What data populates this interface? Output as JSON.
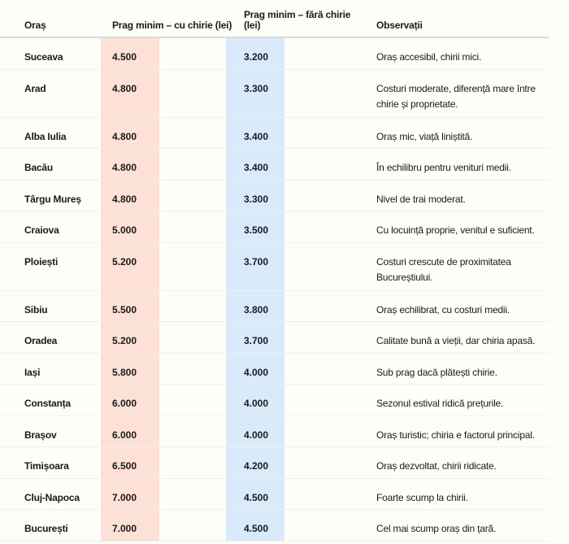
{
  "header": {
    "city": "Oraș",
    "with_rent": "Prag minim – cu chirie (lei)",
    "without_rent": "Prag minim – fără chirie (lei)",
    "notes": "Observații"
  },
  "rows": [
    {
      "city": "Suceava",
      "with_rent": "4.500",
      "without_rent": "3.200",
      "notes": "Oraș accesibil, chirii mici."
    },
    {
      "city": "Arad",
      "with_rent": "4.800",
      "without_rent": "3.300",
      "notes": "Costuri moderate, diferență mare între chirie și proprietate."
    },
    {
      "city": "Alba Iulia",
      "with_rent": "4.800",
      "without_rent": "3.400",
      "notes": "Oraș mic, viață liniștită."
    },
    {
      "city": "Bacău",
      "with_rent": "4.800",
      "without_rent": "3.400",
      "notes": "În echilibru pentru venituri medii."
    },
    {
      "city": "Târgu Mureș",
      "with_rent": "4.800",
      "without_rent": "3.300",
      "notes": "Nivel de trai moderat."
    },
    {
      "city": "Craiova",
      "with_rent": "5.000",
      "without_rent": "3.500",
      "notes": "Cu locuință proprie, venitul e suficient."
    },
    {
      "city": "Ploiești",
      "with_rent": "5.200",
      "without_rent": "3.700",
      "notes": "Costuri crescute de proximitatea Bucureștiului."
    },
    {
      "city": "Sibiu",
      "with_rent": "5.500",
      "without_rent": "3.800",
      "notes": "Oraș echilibrat, cu costuri medii."
    },
    {
      "city": "Oradea",
      "with_rent": "5.200",
      "without_rent": "3.700",
      "notes": "Calitate bună a vieții, dar chiria apasă."
    },
    {
      "city": "Iași",
      "with_rent": "5.800",
      "without_rent": "4.000",
      "notes": "Sub prag dacă plătești chirie."
    },
    {
      "city": "Constanța",
      "with_rent": "6.000",
      "without_rent": "4.000",
      "notes": "Sezonul estival ridică prețurile."
    },
    {
      "city": "Brașov",
      "with_rent": "6.000",
      "without_rent": "4.000",
      "notes": "Oraș turistic; chiria e factorul principal."
    },
    {
      "city": "Timișoara",
      "with_rent": "6.500",
      "without_rent": "4.200",
      "notes": "Oraș dezvoltat, chirii ridicate."
    },
    {
      "city": "Cluj-Napoca",
      "with_rent": "7.000",
      "without_rent": "4.500",
      "notes": "Foarte scump la chirii."
    },
    {
      "city": "București",
      "with_rent": "7.000",
      "without_rent": "4.500",
      "notes": "Cel mai scump oraș din țară."
    }
  ],
  "colors": {
    "with_rent_column": "#fde1d6",
    "without_rent_column": "#d9eafb"
  }
}
